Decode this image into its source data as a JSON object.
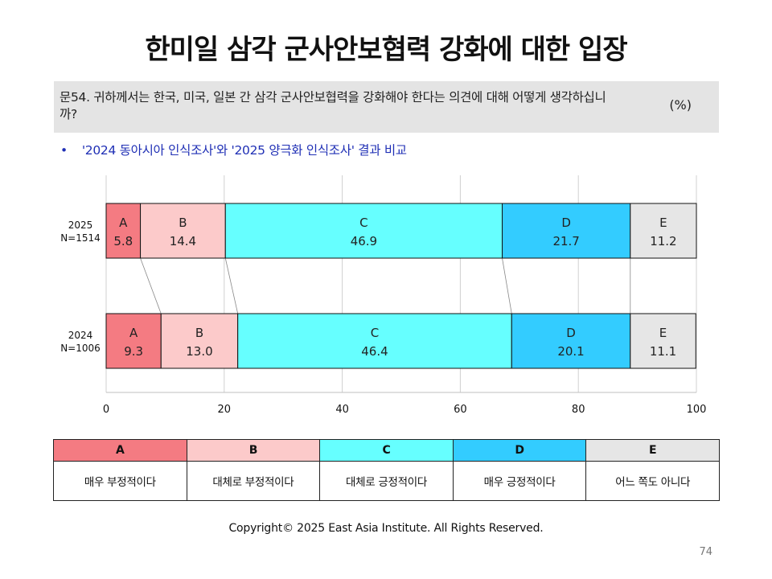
{
  "title": "한미일 삼각 군사안보협력 강화에 대한 입장",
  "question": {
    "text": "문54. 귀하께서는 한국, 미국, 일본 간 삼각 군사안보협력을 강화해야 한다는 의견에 대해 어떻게 생각하십니까?",
    "unit": "(%)"
  },
  "note": {
    "bullet": "•",
    "text": "'2024 동아시아 인식조사'와 '2025 양극화 인식조사' 결과 비교"
  },
  "chart_data": {
    "type": "bar",
    "orientation": "horizontal",
    "stacked": true,
    "categories": [
      {
        "line1": "2025",
        "line2": "N=1514"
      },
      {
        "line1": "2024",
        "line2": "N=1006"
      }
    ],
    "series": [
      {
        "name": "A",
        "values": [
          5.8,
          9.3
        ],
        "color": "#f47b82"
      },
      {
        "name": "B",
        "values": [
          14.4,
          13.0
        ],
        "color": "#fccaca"
      },
      {
        "name": "C",
        "values": [
          46.9,
          46.4
        ],
        "color": "#66ffff"
      },
      {
        "name": "D",
        "values": [
          21.7,
          20.1
        ],
        "color": "#33ccff"
      },
      {
        "name": "E",
        "values": [
          11.2,
          11.1
        ],
        "color": "#e6e6e6"
      }
    ],
    "xlim": [
      0,
      100
    ],
    "xticks": [
      0,
      20,
      40,
      60,
      80,
      100
    ],
    "grid": true,
    "connector_lines": true
  },
  "legend": {
    "headers": [
      "A",
      "B",
      "C",
      "D",
      "E"
    ],
    "labels": [
      "매우 부정적이다",
      "대체로 부정적이다",
      "대체로 긍정적이다",
      "매우 긍정적이다",
      "어느 쪽도 아니다"
    ],
    "colors": [
      "#f47b82",
      "#fccaca",
      "#66ffff",
      "#33ccff",
      "#e6e6e6"
    ]
  },
  "footer": "Copyright© 2025 East Asia Institute. All Rights Reserved.",
  "page_number": "74"
}
